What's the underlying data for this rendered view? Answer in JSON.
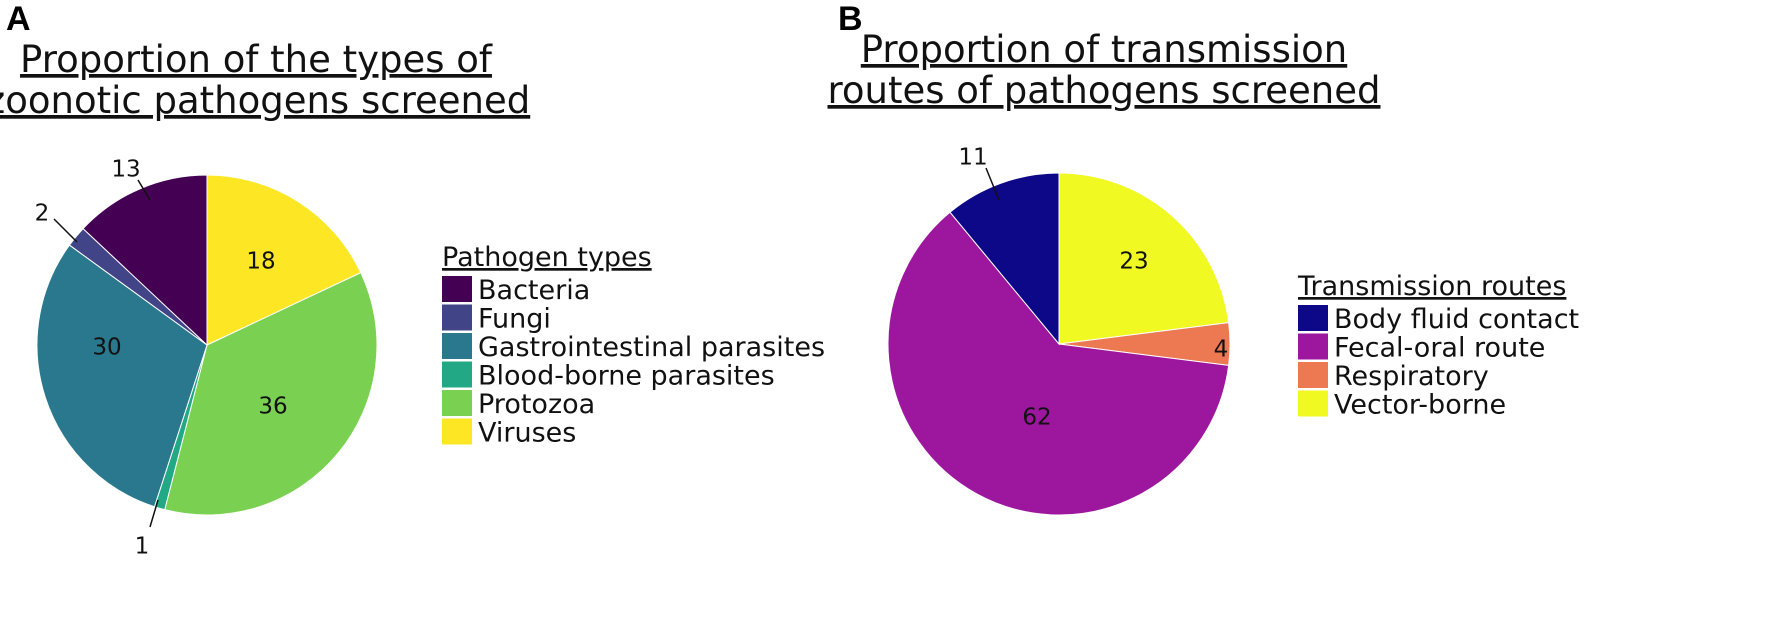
{
  "chart_data": [
    {
      "panel": "A",
      "type": "pie",
      "title": [
        "Proportion of the types of",
        "zoonotic pathogens screened"
      ],
      "legend_title": "Pathogen types",
      "legend_position": "right",
      "start_angle_deg": 90,
      "direction": "clockwise",
      "slices": [
        {
          "name": "Viruses",
          "value": 18,
          "color": "#FDE725"
        },
        {
          "name": "Protozoa",
          "value": 36,
          "color": "#7AD151"
        },
        {
          "name": "Blood-borne parasites",
          "value": 1,
          "color": "#22A884"
        },
        {
          "name": "Gastrointestinal parasites",
          "value": 30,
          "color": "#2A788E"
        },
        {
          "name": "Fungi",
          "value": 2,
          "color": "#414487"
        },
        {
          "name": "Bacteria",
          "value": 13,
          "color": "#440154"
        }
      ],
      "legend_order": [
        "Bacteria",
        "Fungi",
        "Gastrointestinal parasites",
        "Blood-borne parasites",
        "Protozoa",
        "Viruses"
      ]
    },
    {
      "panel": "B",
      "type": "pie",
      "title": [
        "Proportion of transmission",
        "routes of pathogens screened"
      ],
      "legend_title": "Transmission routes",
      "legend_position": "right",
      "start_angle_deg": 90,
      "direction": "clockwise",
      "slices": [
        {
          "name": "Vector-borne",
          "value": 23,
          "color": "#F0F921"
        },
        {
          "name": "Respiratory",
          "value": 4,
          "color": "#ED7953"
        },
        {
          "name": "Fecal-oral route",
          "value": 62,
          "color": "#9C179E"
        },
        {
          "name": "Body fluid contact",
          "value": 11,
          "color": "#0D0887"
        }
      ],
      "legend_order": [
        "Body fluid contact",
        "Fecal-oral route",
        "Respiratory",
        "Vector-borne"
      ]
    }
  ]
}
